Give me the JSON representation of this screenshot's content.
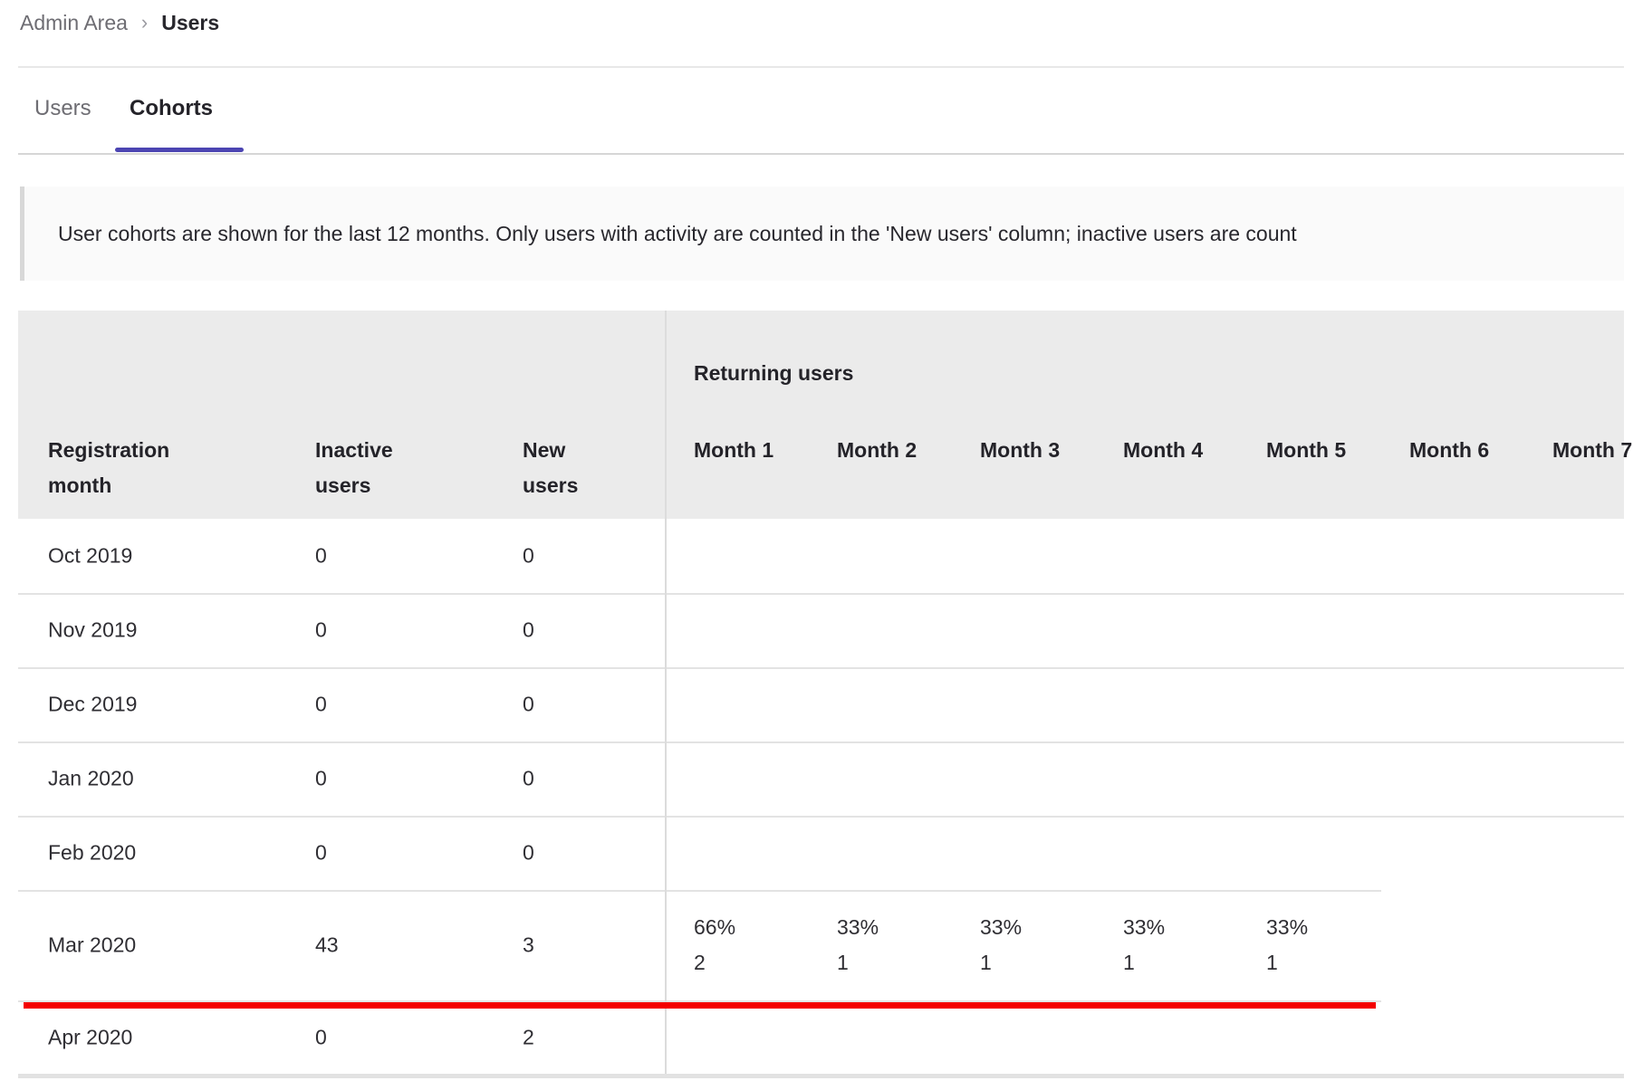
{
  "breadcrumb": {
    "items": [
      {
        "label": "Admin Area"
      },
      {
        "label": "Users"
      }
    ],
    "separator": "›"
  },
  "tabs": {
    "items": [
      {
        "label": "Users"
      },
      {
        "label": "Cohorts"
      }
    ],
    "active_label": "Cohorts"
  },
  "notice": {
    "text": "User cohorts are shown for the last 12 months. Only users with activity are counted in the 'New users' column; inactive users are count"
  },
  "cohorts_table": {
    "returning_group_label": "Returning users",
    "left_columns": [
      "Registration month",
      "Inactive users",
      "New users"
    ],
    "month_columns": [
      "Month 1",
      "Month 2",
      "Month 3",
      "Month 4",
      "Month 5",
      "Month 6",
      "Month 7"
    ],
    "rows": [
      {
        "registration_month": "Oct 2019",
        "inactive_users": "0",
        "new_users": "0",
        "returning": []
      },
      {
        "registration_month": "Nov 2019",
        "inactive_users": "0",
        "new_users": "0",
        "returning": []
      },
      {
        "registration_month": "Dec 2019",
        "inactive_users": "0",
        "new_users": "0",
        "returning": []
      },
      {
        "registration_month": "Jan 2020",
        "inactive_users": "0",
        "new_users": "0",
        "returning": []
      },
      {
        "registration_month": "Feb 2020",
        "inactive_users": "0",
        "new_users": "0",
        "returning": []
      },
      {
        "registration_month": "Mar 2020",
        "inactive_users": "43",
        "new_users": "3",
        "returning": [
          {
            "percent": "66%",
            "count": "2"
          },
          {
            "percent": "33%",
            "count": "1"
          },
          {
            "percent": "33%",
            "count": "1"
          },
          {
            "percent": "33%",
            "count": "1"
          },
          {
            "percent": "33%",
            "count": "1"
          }
        ]
      },
      {
        "registration_month": "Apr 2020",
        "inactive_users": "0",
        "new_users": "2",
        "returning": []
      }
    ]
  },
  "annotation": {
    "red_line_color": "#f40000"
  },
  "colors": {
    "accent_purple": "#4c45b2",
    "header_bg": "#ebebeb",
    "notice_bg": "#fafafa",
    "divider": "#e3e3e3"
  }
}
